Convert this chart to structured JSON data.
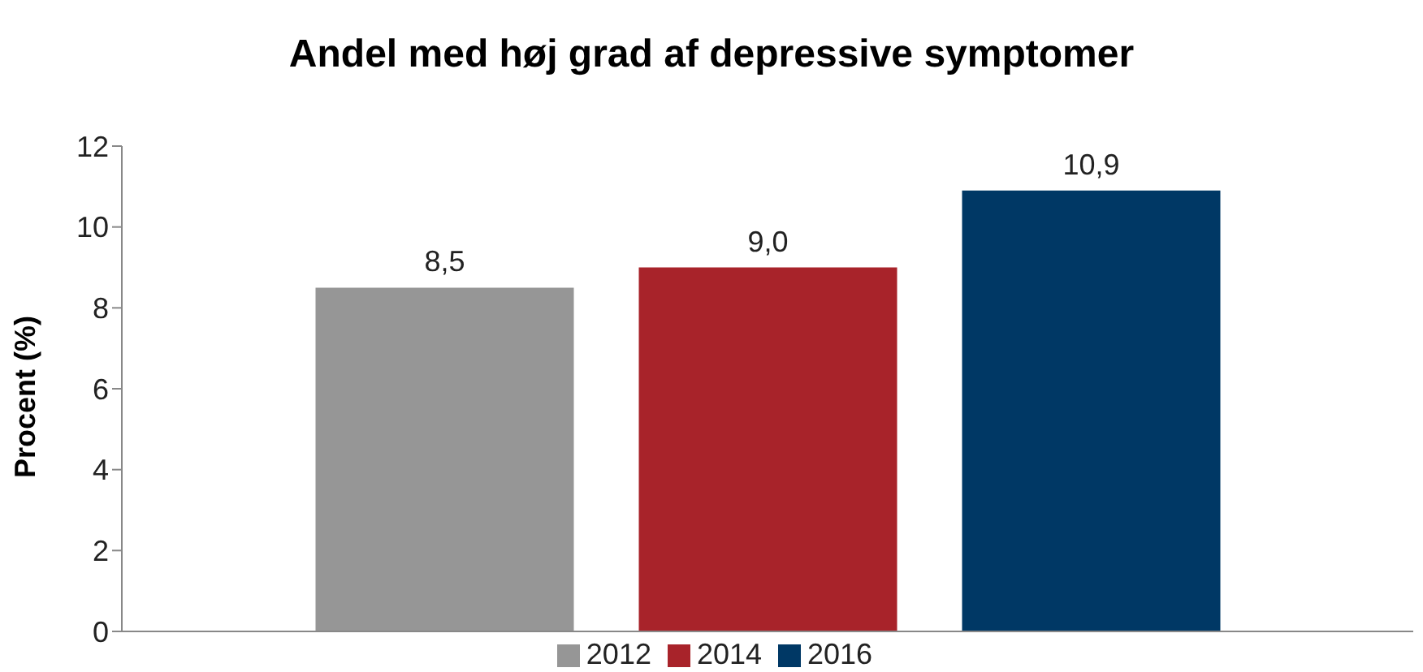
{
  "chart_data": {
    "type": "bar",
    "title": "Andel med høj grad af depressive symptomer",
    "ylabel": "Procent (%)",
    "categories": [
      null
    ],
    "series": [
      {
        "name": "2012",
        "color": "#969696",
        "values": [
          8.5
        ],
        "value_labels": [
          "8,5"
        ]
      },
      {
        "name": "2014",
        "color": "#a8232a",
        "values": [
          9.0
        ],
        "value_labels": [
          "9,0"
        ]
      },
      {
        "name": "2016",
        "color": "#003865",
        "values": [
          10.9
        ],
        "value_labels": [
          "10,9"
        ]
      }
    ],
    "ylim": [
      0,
      12
    ],
    "yticks": [
      0,
      2,
      4,
      6,
      8,
      10,
      12
    ],
    "grid": false,
    "legend": "bottom",
    "tick_labels": "y"
  }
}
